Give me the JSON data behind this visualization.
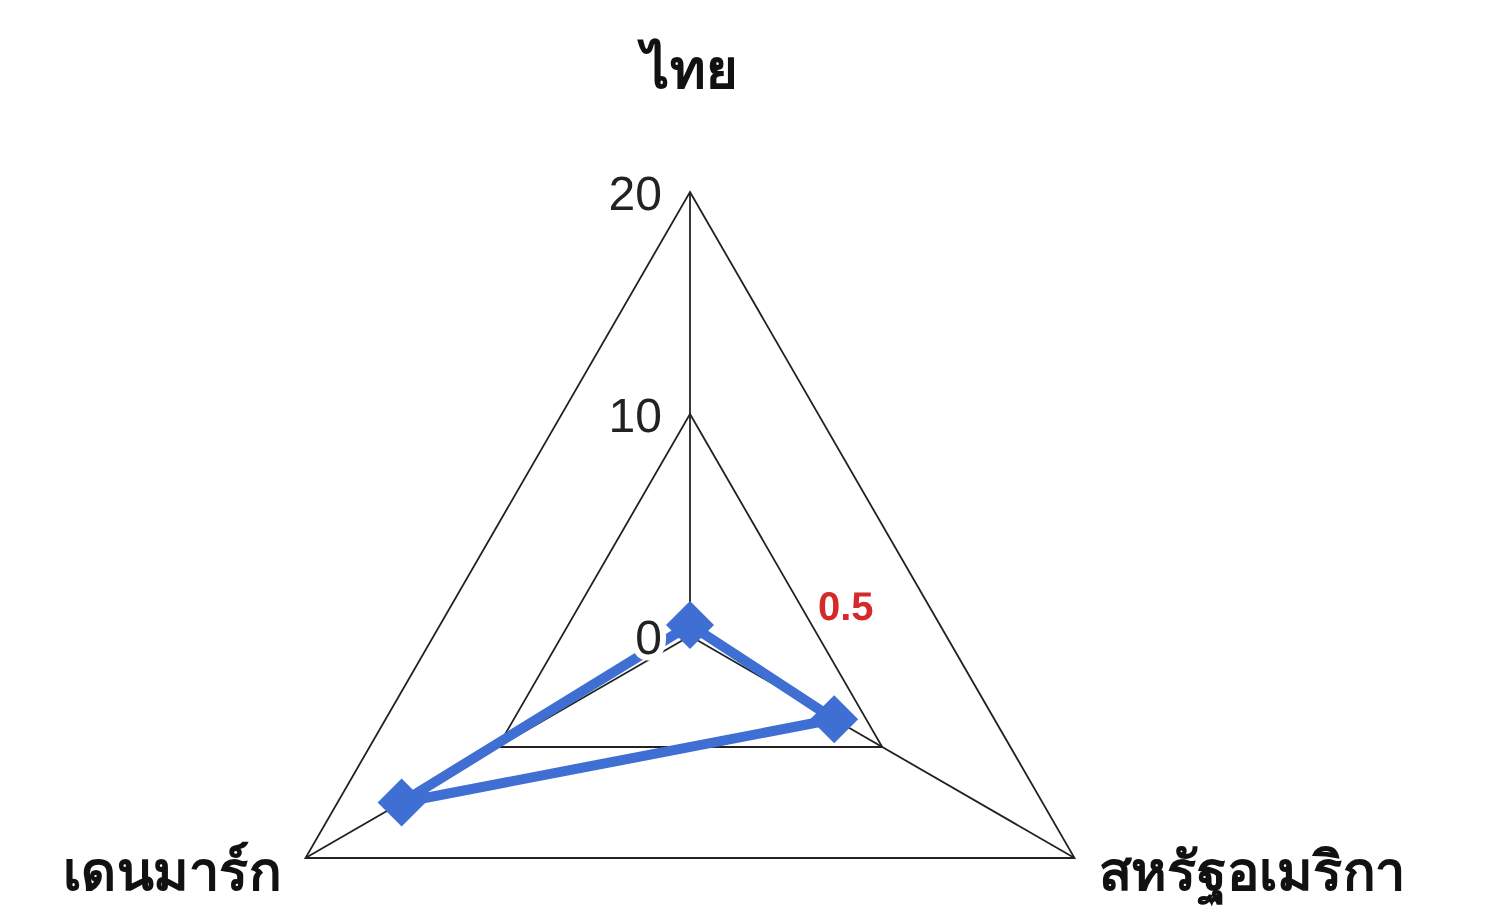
{
  "chart_data": {
    "type": "radar",
    "categories": [
      "ไทย",
      "สหรัฐอเมริกา",
      "เดนมาร์ก"
    ],
    "series": [
      {
        "color": "#3f6fd2",
        "values": [
          0.5,
          7.5,
          15
        ]
      }
    ],
    "ylim": [
      0,
      20
    ],
    "yticks": [
      0,
      10,
      20
    ],
    "grid": true,
    "marker": "diamond",
    "line_style": "solid",
    "annotations": [
      "0.5"
    ]
  }
}
